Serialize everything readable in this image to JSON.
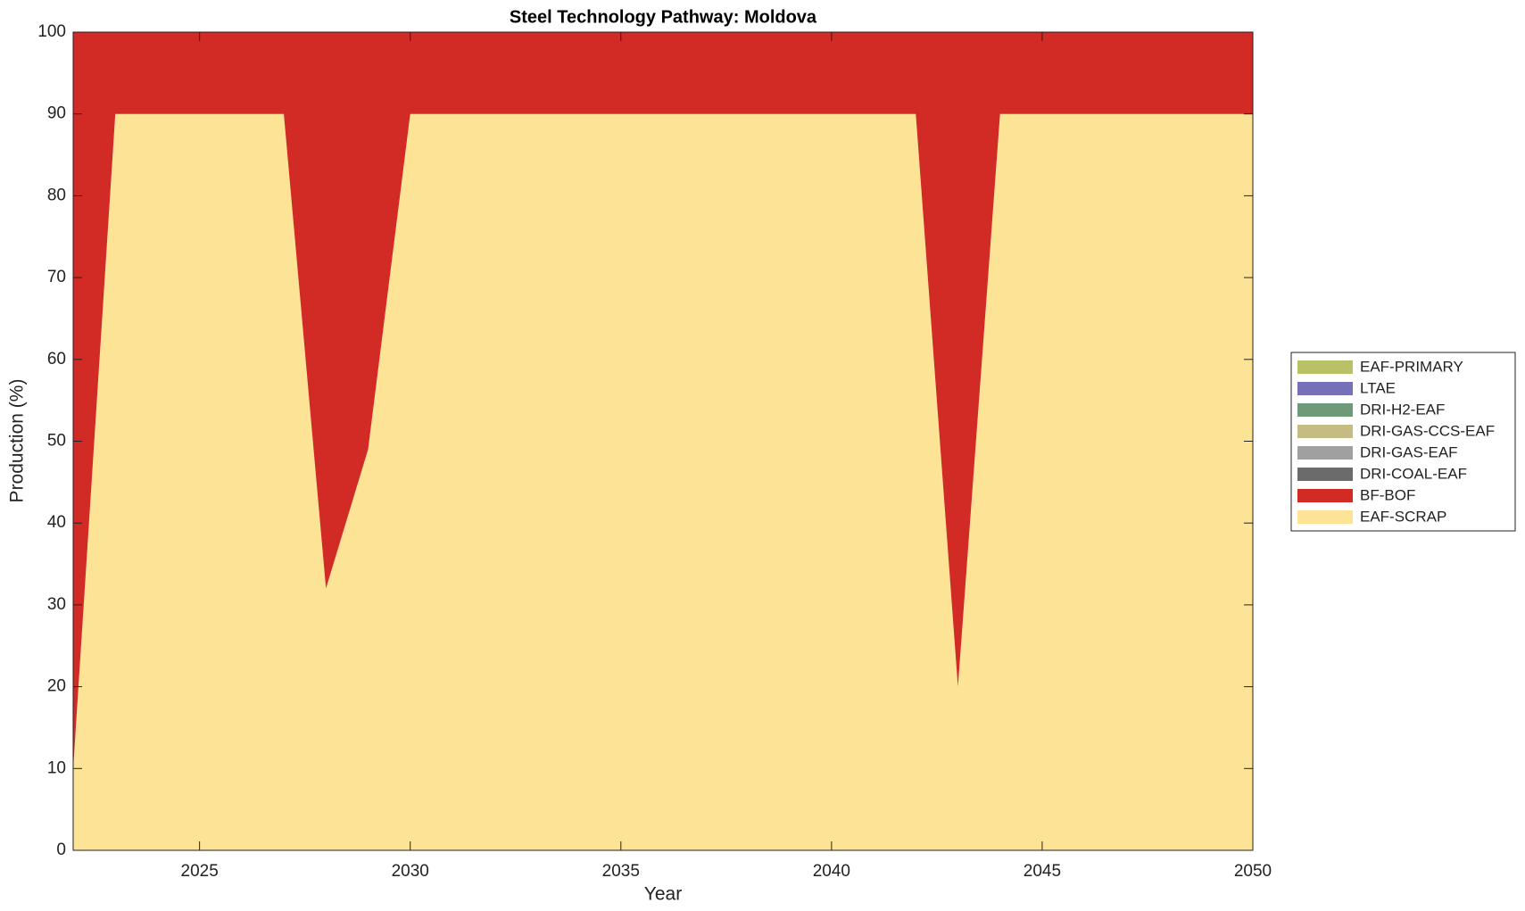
{
  "chart_data": {
    "type": "stacked-area",
    "title": "Steel Technology Pathway: Moldova",
    "x_label": "Year",
    "y_label": "Production (%)",
    "x": [
      2022,
      2023,
      2024,
      2025,
      2026,
      2027,
      2028,
      2029,
      2030,
      2031,
      2032,
      2033,
      2034,
      2035,
      2036,
      2037,
      2038,
      2039,
      2040,
      2041,
      2042,
      2043,
      2044,
      2045,
      2046,
      2047,
      2048,
      2049,
      2050
    ],
    "xlim": [
      2022,
      2050
    ],
    "xticks": [
      2025,
      2030,
      2035,
      2040,
      2045,
      2050
    ],
    "ylim": [
      0,
      100
    ],
    "yticks": [
      0,
      10,
      20,
      30,
      40,
      50,
      60,
      70,
      80,
      90,
      100
    ],
    "legend_position": "outside-right",
    "series": [
      {
        "name": "EAF-SCRAP",
        "color": "#fde396",
        "values": [
          10,
          90,
          90,
          90,
          90,
          90,
          32,
          49,
          90,
          90,
          90,
          90,
          90,
          90,
          90,
          90,
          90,
          90,
          90,
          90,
          90,
          20,
          90,
          90,
          90,
          90,
          90,
          90,
          90
        ]
      },
      {
        "name": "BF-BOF",
        "color": "#d22b25",
        "values": [
          90,
          10,
          10,
          10,
          10,
          10,
          68,
          51,
          10,
          10,
          10,
          10,
          10,
          10,
          10,
          10,
          10,
          10,
          10,
          10,
          10,
          80,
          10,
          10,
          10,
          10,
          10,
          10,
          10
        ]
      },
      {
        "name": "DRI-COAL-EAF",
        "color": "#6b6b6b",
        "values": [
          0,
          0,
          0,
          0,
          0,
          0,
          0,
          0,
          0,
          0,
          0,
          0,
          0,
          0,
          0,
          0,
          0,
          0,
          0,
          0,
          0,
          0,
          0,
          0,
          0,
          0,
          0,
          0,
          0
        ]
      },
      {
        "name": "DRI-GAS-EAF",
        "color": "#a0a0a0",
        "values": [
          0,
          0,
          0,
          0,
          0,
          0,
          0,
          0,
          0,
          0,
          0,
          0,
          0,
          0,
          0,
          0,
          0,
          0,
          0,
          0,
          0,
          0,
          0,
          0,
          0,
          0,
          0,
          0,
          0
        ]
      },
      {
        "name": "DRI-GAS-CCS-EAF",
        "color": "#c4bc82",
        "values": [
          0,
          0,
          0,
          0,
          0,
          0,
          0,
          0,
          0,
          0,
          0,
          0,
          0,
          0,
          0,
          0,
          0,
          0,
          0,
          0,
          0,
          0,
          0,
          0,
          0,
          0,
          0,
          0,
          0
        ]
      },
      {
        "name": "DRI-H2-EAF",
        "color": "#6e9a7a",
        "values": [
          0,
          0,
          0,
          0,
          0,
          0,
          0,
          0,
          0,
          0,
          0,
          0,
          0,
          0,
          0,
          0,
          0,
          0,
          0,
          0,
          0,
          0,
          0,
          0,
          0,
          0,
          0,
          0,
          0
        ]
      },
      {
        "name": "LTAE",
        "color": "#7570b8",
        "values": [
          0,
          0,
          0,
          0,
          0,
          0,
          0,
          0,
          0,
          0,
          0,
          0,
          0,
          0,
          0,
          0,
          0,
          0,
          0,
          0,
          0,
          0,
          0,
          0,
          0,
          0,
          0,
          0,
          0
        ]
      },
      {
        "name": "EAF-PRIMARY",
        "color": "#b8c165",
        "values": [
          0,
          0,
          0,
          0,
          0,
          0,
          0,
          0,
          0,
          0,
          0,
          0,
          0,
          0,
          0,
          0,
          0,
          0,
          0,
          0,
          0,
          0,
          0,
          0,
          0,
          0,
          0,
          0,
          0
        ]
      }
    ]
  }
}
